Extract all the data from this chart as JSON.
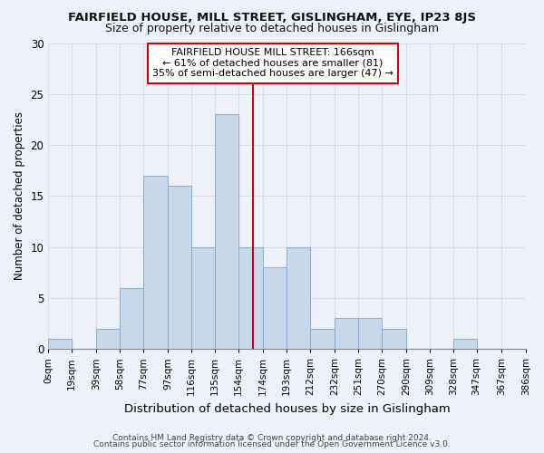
{
  "title1": "FAIRFIELD HOUSE, MILL STREET, GISLINGHAM, EYE, IP23 8JS",
  "title2": "Size of property relative to detached houses in Gislingham",
  "xlabel": "Distribution of detached houses by size in Gislingham",
  "ylabel": "Number of detached properties",
  "bar_values": [
    1,
    0,
    2,
    6,
    17,
    16,
    10,
    23,
    10,
    8,
    10,
    2,
    3,
    3,
    2,
    0,
    0,
    1,
    0
  ],
  "bin_edges": [
    0,
    19,
    39,
    58,
    77,
    97,
    116,
    135,
    154,
    174,
    193,
    212,
    232,
    251,
    270,
    290,
    309,
    328,
    347,
    367
  ],
  "tick_labels": [
    "0sqm",
    "19sqm",
    "39sqm",
    "58sqm",
    "77sqm",
    "97sqm",
    "116sqm",
    "135sqm",
    "154sqm",
    "174sqm",
    "193sqm",
    "212sqm",
    "232sqm",
    "251sqm",
    "270sqm",
    "290sqm",
    "309sqm",
    "328sqm",
    "347sqm",
    "367sqm",
    "386sqm"
  ],
  "bar_color": "#c9d9ec",
  "bar_edge_color": "#8ab4d4",
  "reference_line_x": 166,
  "reference_line_color": "#cc0000",
  "ylim": [
    0,
    30
  ],
  "yticks": [
    0,
    5,
    10,
    15,
    20,
    25,
    30
  ],
  "annotation_text": "FAIRFIELD HOUSE MILL STREET: 166sqm\n← 61% of detached houses are smaller (81)\n35% of semi-detached houses are larger (47) →",
  "annotation_box_color": "#ffffff",
  "annotation_box_edge": "#cc0000",
  "footer1": "Contains HM Land Registry data © Crown copyright and database right 2024.",
  "footer2": "Contains public sector information licensed under the Open Government Licence v3.0.",
  "background_color": "#eef2f8",
  "grid_color": "#d8e0ec",
  "title1_fontsize": 9.5,
  "title2_fontsize": 9.0,
  "ylabel_fontsize": 8.5,
  "xlabel_fontsize": 9.5,
  "tick_fontsize": 7.5,
  "ytick_fontsize": 8.5,
  "annotation_fontsize": 8.0,
  "footer_fontsize": 6.5
}
